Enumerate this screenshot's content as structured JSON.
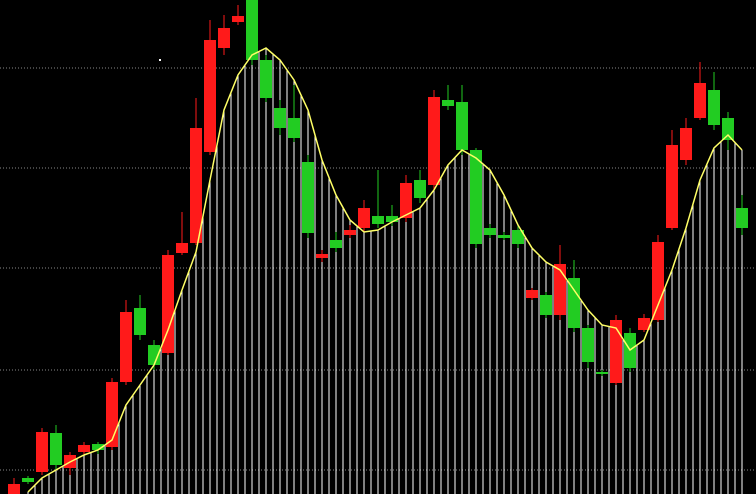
{
  "chart_data": {
    "type": "candlestick",
    "open": [
      0,
      16,
      22,
      61,
      26,
      42,
      50,
      47,
      112,
      186,
      149,
      141,
      241,
      251,
      342,
      446,
      472,
      494,
      434,
      386,
      376,
      332,
      236,
      254,
      259,
      266,
      278,
      278,
      276,
      314,
      309,
      394,
      392,
      344,
      266,
      259,
      264,
      196,
      199,
      179,
      216,
      166,
      122,
      111,
      161,
      164,
      174,
      266,
      334,
      376,
      404,
      376,
      286
    ],
    "high": [
      16,
      18,
      66,
      69,
      42,
      52,
      52,
      116,
      194,
      199,
      154,
      244,
      282,
      396,
      474,
      479,
      489,
      494,
      439,
      394,
      409,
      339,
      244,
      262,
      269,
      294,
      324,
      289,
      319,
      324,
      404,
      409,
      409,
      346,
      270,
      262,
      268,
      206,
      202,
      249,
      234,
      169,
      124,
      179,
      166,
      180,
      259,
      364,
      376,
      432,
      422,
      382,
      299
    ],
    "low": [
      0,
      10,
      19,
      24,
      19,
      40,
      40,
      44,
      109,
      154,
      124,
      139,
      239,
      249,
      339,
      439,
      469,
      429,
      392,
      359,
      352,
      256,
      232,
      242,
      256,
      262,
      266,
      268,
      272,
      291,
      304,
      384,
      339,
      246,
      256,
      254,
      246,
      194,
      176,
      174,
      162,
      126,
      118,
      109,
      122,
      162,
      172,
      264,
      329,
      374,
      364,
      344,
      259
    ],
    "close": [
      10,
      12,
      62,
      29,
      39,
      49,
      44,
      112,
      182,
      159,
      129,
      239,
      251,
      366,
      454,
      466,
      478,
      434,
      396,
      366,
      356,
      261,
      240,
      246,
      264,
      286,
      270,
      272,
      311,
      296,
      397,
      388,
      344,
      250,
      259,
      256,
      250,
      204,
      179,
      230,
      166,
      132,
      120,
      174,
      126,
      176,
      252,
      349,
      366,
      411,
      369,
      354,
      266
    ],
    "ma": {
      "color": "#ffff66",
      "values": [
        null,
        2,
        16,
        24,
        32,
        39,
        44,
        54,
        89,
        109,
        129,
        164,
        204,
        242,
        314,
        384,
        419,
        439,
        446,
        434,
        414,
        384,
        334,
        299,
        274,
        262,
        264,
        272,
        279,
        286,
        304,
        329,
        344,
        336,
        324,
        299,
        269,
        246,
        232,
        224,
        204,
        184,
        169,
        166,
        144,
        154,
        189,
        224,
        266,
        314,
        346,
        359,
        344
      ]
    },
    "up_color": "#ff1a1a",
    "down_color": "#22cc22",
    "ylim": [
      0,
      494
    ],
    "yticks": [
      24,
      124,
      226,
      326,
      426
    ],
    "grid": true
  }
}
